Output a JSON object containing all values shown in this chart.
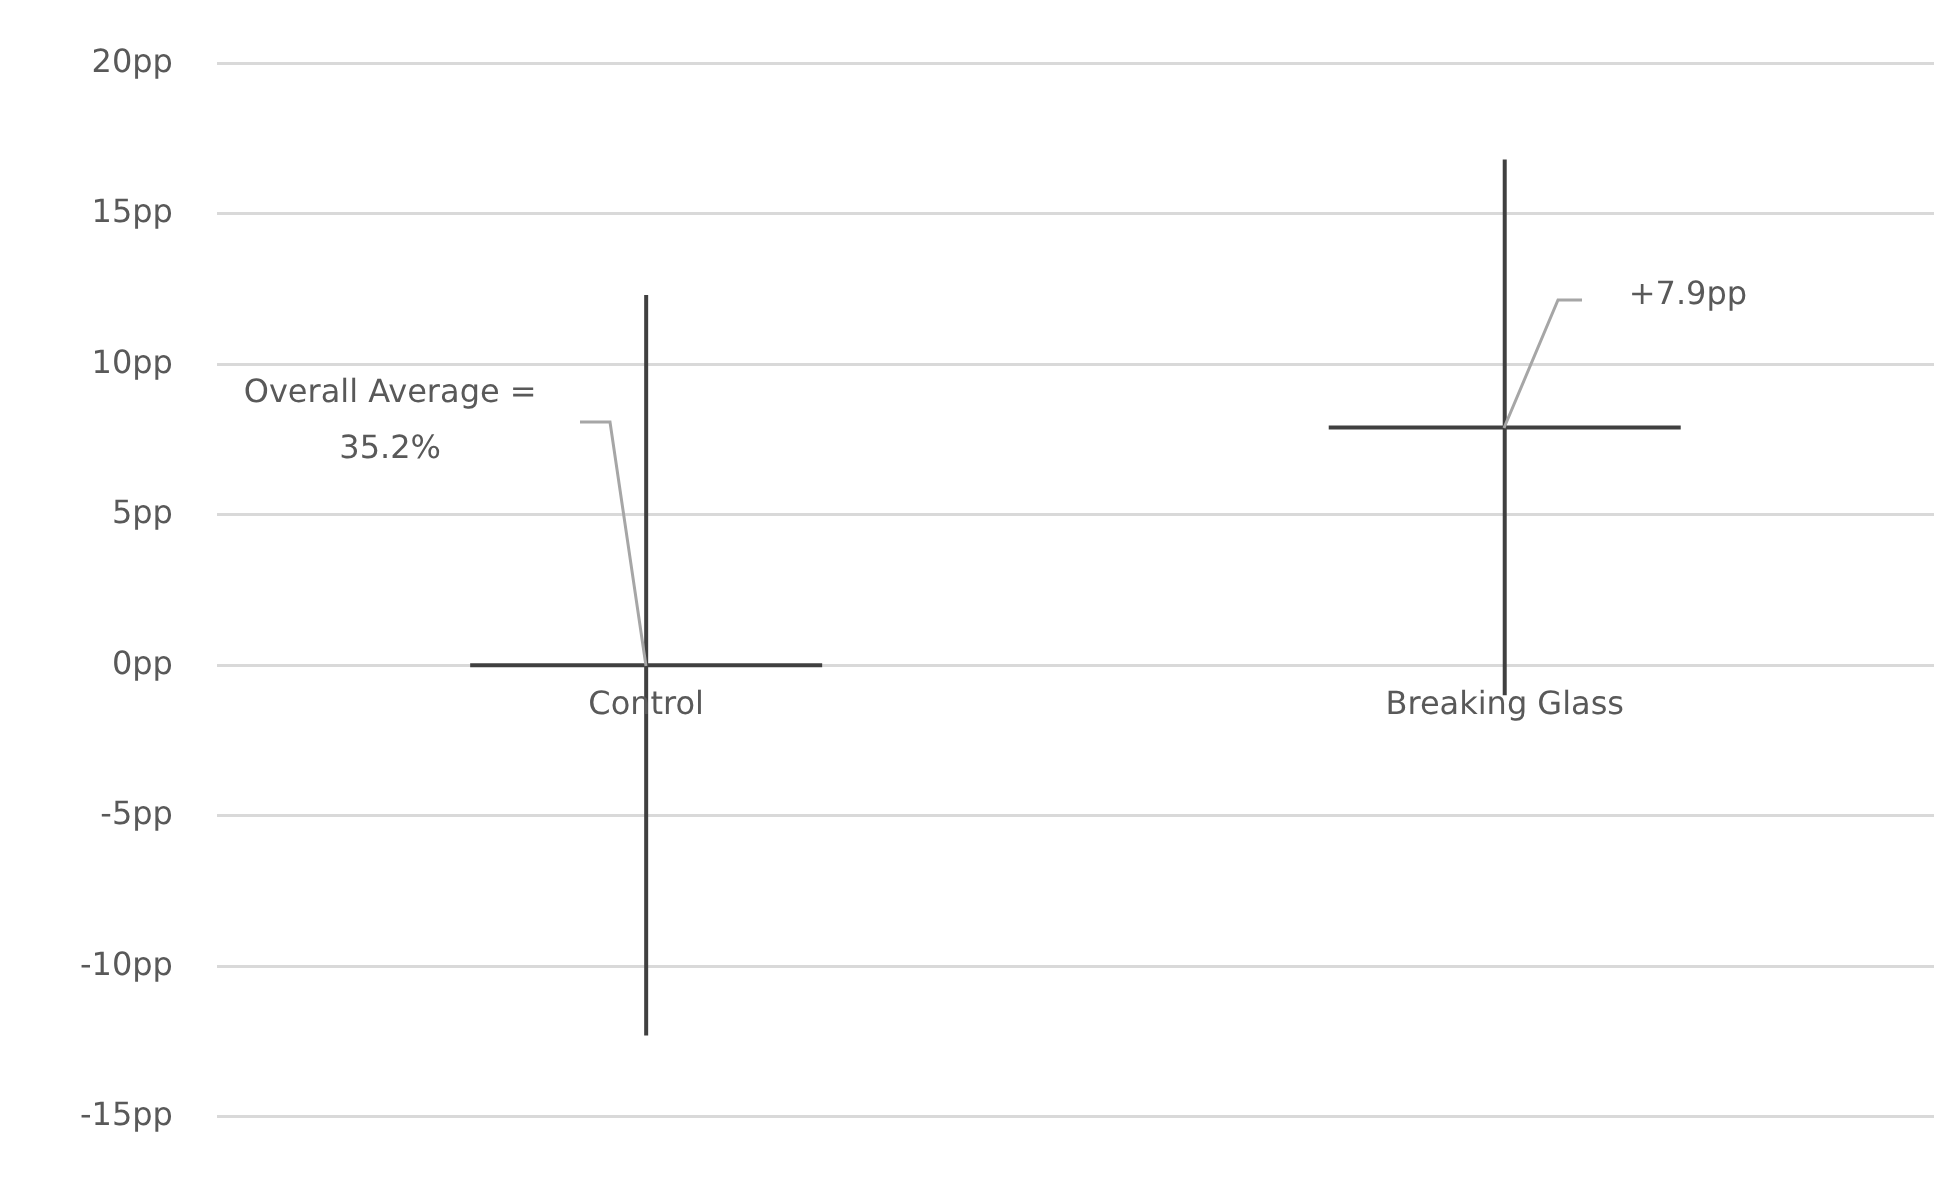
{
  "chart_data": {
    "type": "box",
    "categories": [
      "Control",
      "Breaking Glass"
    ],
    "color": "#404040",
    "boxes": [
      {
        "low": -12.3,
        "q1": 0,
        "median": 0,
        "q3": 0,
        "high": 12.3
      },
      {
        "low": -1.0,
        "q1": 7.9,
        "median": 7.9,
        "q3": 7.9,
        "high": 16.8
      }
    ],
    "ylim": [
      -15,
      20
    ],
    "yticks": [
      {
        "value": -15,
        "label": "-15pp"
      },
      {
        "value": -10,
        "label": "-10pp"
      },
      {
        "value": -5,
        "label": "-5pp"
      },
      {
        "value": 0,
        "label": "0pp"
      },
      {
        "value": 5,
        "label": "5pp"
      },
      {
        "value": 10,
        "label": "10pp"
      },
      {
        "value": 15,
        "label": "15pp"
      },
      {
        "value": 20,
        "label": "20pp"
      }
    ],
    "grid": "y",
    "legend": false,
    "annotations": [
      "Overall Average = 35.2%",
      "+7.9pp"
    ]
  }
}
